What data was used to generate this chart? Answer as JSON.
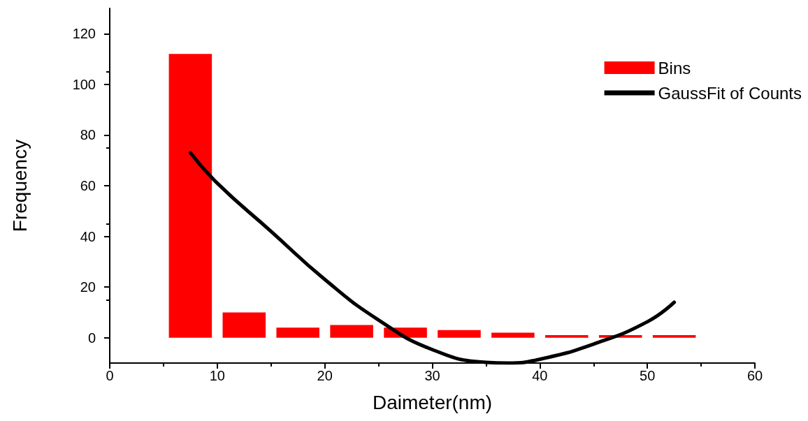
{
  "chart_data": {
    "type": "histogram",
    "xlabel": "Daimeter(nm)",
    "ylabel": "Frequency",
    "xlim": [
      0,
      60
    ],
    "xticks": [
      0,
      10,
      20,
      30,
      40,
      50,
      60
    ],
    "ylim": [
      -10,
      130
    ],
    "yticks": [
      0,
      20,
      40,
      60,
      80,
      100,
      120
    ],
    "grid": false,
    "legend": "top right",
    "series": [
      {
        "name": "Bins",
        "color": "#ff0000",
        "bins": [
          5,
          10,
          15,
          20,
          25,
          30,
          35,
          40,
          45,
          50,
          55
        ],
        "values": [
          112,
          10,
          4,
          5,
          4,
          3,
          2,
          1,
          1,
          1
        ]
      },
      {
        "type": "line",
        "name": "GaussFit of Counts",
        "color": "#000000",
        "marker": "none",
        "line_style": "solid",
        "x": [
          7.5,
          10,
          15,
          20,
          25,
          30,
          35,
          37,
          40,
          45,
          50,
          52.5
        ],
        "values": [
          73,
          61,
          42,
          23,
          7,
          -4.7,
          -9.7,
          -10,
          -8.5,
          -2.5,
          6.3,
          14
        ]
      }
    ]
  }
}
